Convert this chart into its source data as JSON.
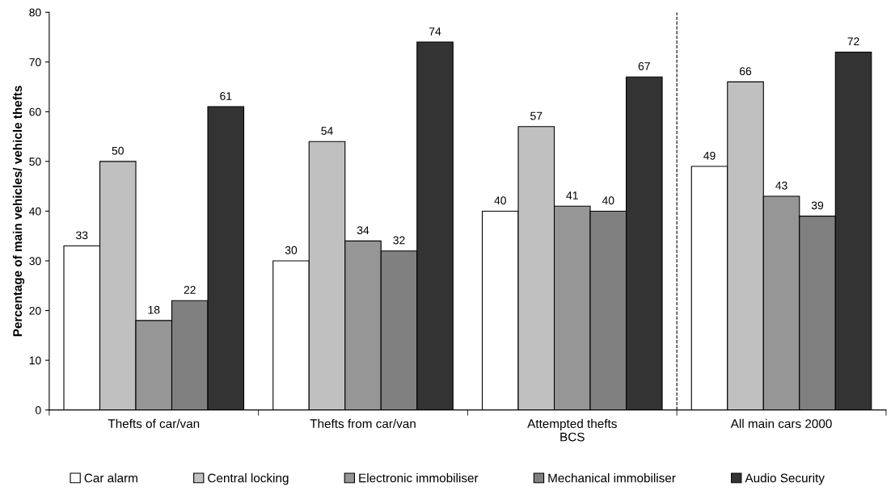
{
  "chart_data": {
    "type": "bar",
    "ylabel": "Percentage of main vehicles/ vehicle thefts",
    "categories": [
      "Thefts of car/van",
      "Thefts from car/van",
      "Attempted thefts\nBCS",
      "All main cars 2000"
    ],
    "series": [
      {
        "name": "Car alarm",
        "color": "#ffffff",
        "values": [
          33,
          30,
          40,
          49
        ]
      },
      {
        "name": "Central locking",
        "color": "#c0c0c0",
        "values": [
          50,
          54,
          57,
          66
        ]
      },
      {
        "name": "Electronic immobiliser",
        "color": "#969696",
        "values": [
          18,
          34,
          41,
          43
        ]
      },
      {
        "name": "Mechanical immobiliser",
        "color": "#808080",
        "values": [
          22,
          32,
          40,
          39
        ]
      },
      {
        "name": "Audio Security",
        "color": "#333333",
        "values": [
          61,
          74,
          67,
          72
        ]
      }
    ],
    "ylim": [
      0,
      80
    ],
    "yticks": [
      0,
      10,
      20,
      30,
      40,
      50,
      60,
      70,
      80
    ],
    "data_labels": true,
    "grid": false,
    "legend": "bottom"
  }
}
